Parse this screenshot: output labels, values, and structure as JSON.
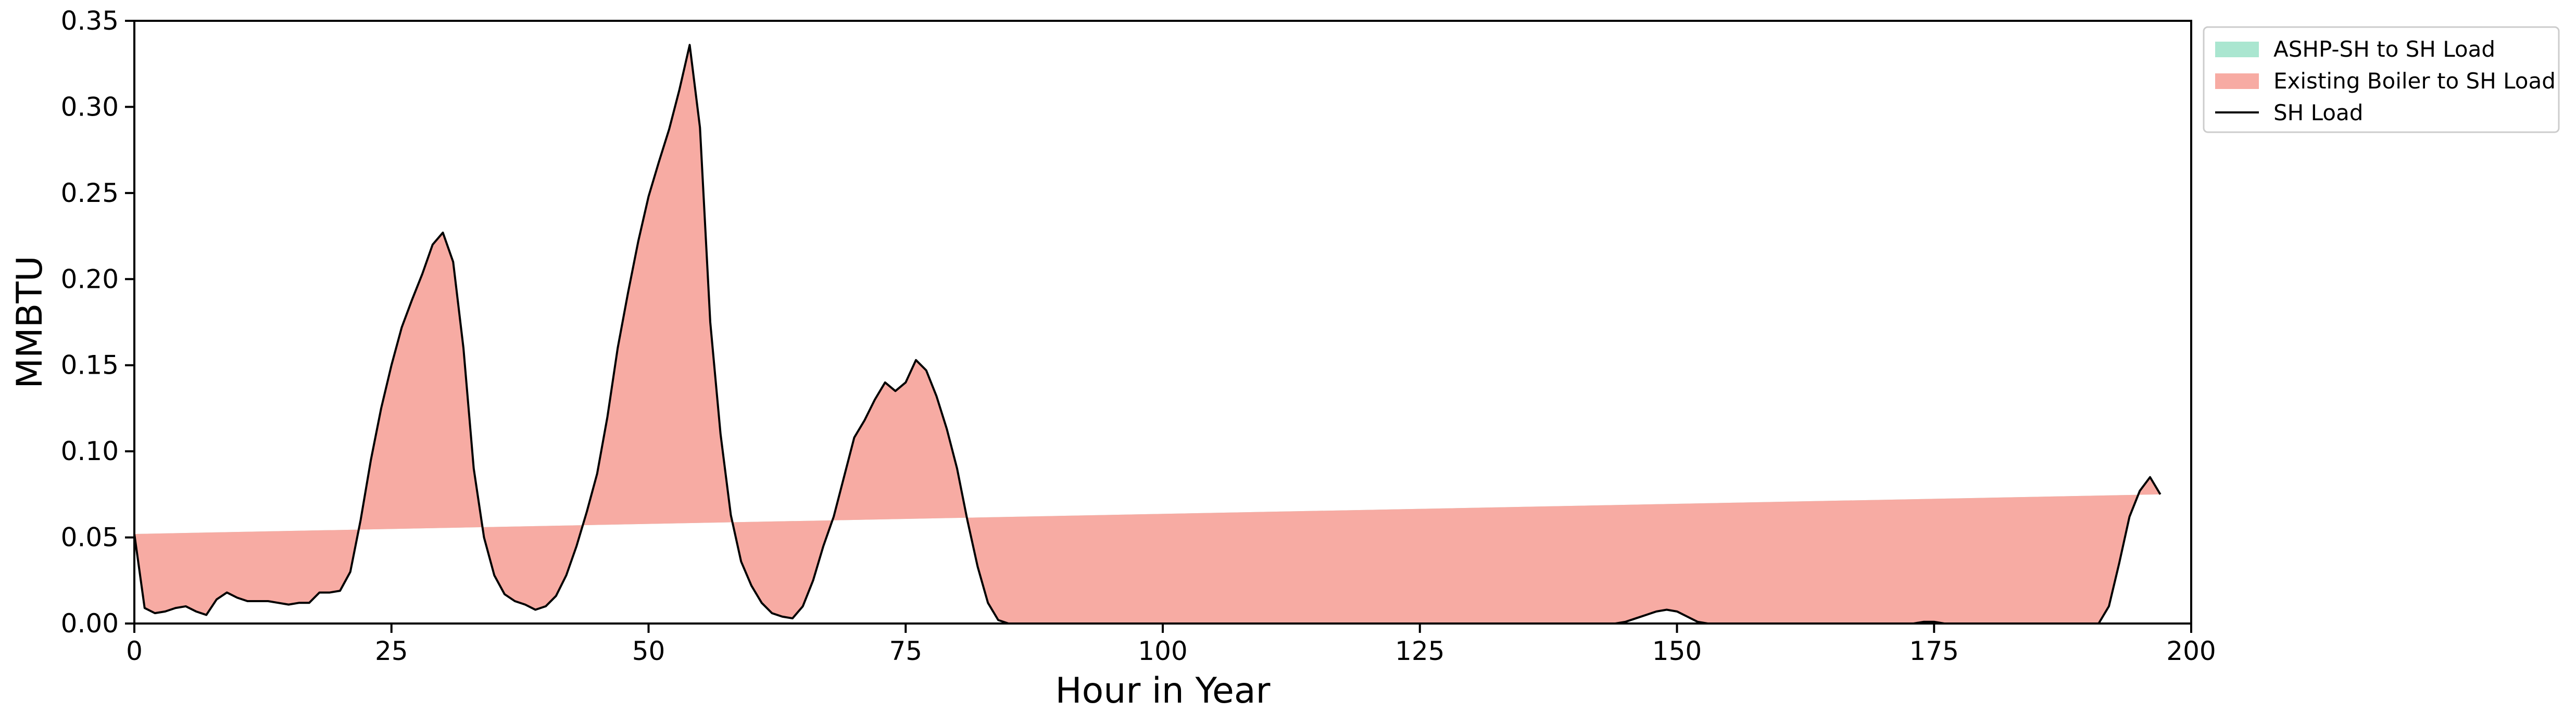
{
  "chart_data": {
    "type": "area",
    "title": "",
    "xlabel": "Hour in Year",
    "ylabel": "MMBTU",
    "xlim": [
      0,
      200
    ],
    "ylim": [
      0,
      0.35
    ],
    "x_ticks": [
      0,
      25,
      50,
      75,
      100,
      125,
      150,
      175,
      200
    ],
    "y_ticks": [
      0.0,
      0.05,
      0.1,
      0.15,
      0.2,
      0.25,
      0.3,
      0.35
    ],
    "x_tick_labels": [
      "0",
      "25",
      "50",
      "75",
      "100",
      "125",
      "150",
      "175",
      "200"
    ],
    "y_tick_labels": [
      "0.00",
      "0.05",
      "0.10",
      "0.15",
      "0.20",
      "0.25",
      "0.30",
      "0.35"
    ],
    "grid": false,
    "legend_position": "outside top-right",
    "colors": {
      "ashp": "#aae6d0",
      "boiler": "#f7aba3",
      "load": "#000000",
      "frame": "#000000",
      "legend_border": "#cccccc"
    },
    "series": [
      {
        "name": "ASHP-SH to SH Load",
        "kind": "area",
        "color_key": "ashp"
      },
      {
        "name": "Existing Boiler to SH Load",
        "kind": "area",
        "color_key": "boiler"
      },
      {
        "name": "SH Load",
        "kind": "line",
        "color_key": "load"
      }
    ],
    "x": [
      0,
      1,
      2,
      3,
      4,
      5,
      6,
      7,
      8,
      9,
      10,
      11,
      12,
      13,
      14,
      15,
      16,
      17,
      18,
      19,
      20,
      21,
      22,
      23,
      24,
      25,
      26,
      27,
      28,
      29,
      30,
      31,
      32,
      33,
      34,
      35,
      36,
      37,
      38,
      39,
      40,
      41,
      42,
      43,
      44,
      45,
      46,
      47,
      48,
      49,
      50,
      51,
      52,
      53,
      54,
      55,
      56,
      57,
      58,
      59,
      60,
      61,
      62,
      63,
      64,
      65,
      66,
      67,
      68,
      69,
      70,
      71,
      72,
      73,
      74,
      75,
      76,
      77,
      78,
      79,
      80,
      81,
      82,
      83,
      84,
      85,
      86,
      87,
      88,
      89,
      90,
      91,
      92,
      93,
      94,
      95,
      96,
      97,
      98,
      99,
      100,
      101,
      102,
      103,
      104,
      105,
      106,
      107,
      108,
      109,
      110,
      111,
      112,
      113,
      114,
      115,
      116,
      117,
      118,
      119,
      120,
      121,
      122,
      123,
      124,
      125,
      126,
      127,
      128,
      129,
      130,
      131,
      132,
      133,
      134,
      135,
      136,
      137,
      138,
      139,
      140,
      141,
      142,
      143,
      144,
      145,
      146,
      147,
      148,
      149,
      150,
      151,
      152,
      153,
      154,
      155,
      156,
      157,
      158,
      159,
      160,
      161,
      162,
      163,
      164,
      165,
      166,
      167,
      168,
      169,
      170,
      171,
      172,
      173,
      174,
      175,
      176,
      177,
      178,
      179,
      180,
      181,
      182,
      183,
      184,
      185,
      186,
      187,
      188,
      189,
      190,
      191,
      192,
      193,
      194,
      195,
      196,
      197,
      198,
      199
    ],
    "ashp_to_sh": [
      0.052,
      0.009,
      0.006,
      0.007,
      0.009,
      0.01,
      0.007,
      0.005,
      0.014,
      0.018,
      0.015,
      0.013,
      0.013,
      0.013,
      0.012,
      0.011,
      0.012,
      0.012,
      0.018,
      0.018,
      0.019,
      0.03,
      0.06,
      0.095,
      0.125,
      0.15,
      0.172,
      0.188,
      0.203,
      0.22,
      0.227,
      0.21,
      0.16,
      0.09,
      0.05,
      0.028,
      0.017,
      0.013,
      0.011,
      0.008,
      0.01,
      0.016,
      0.028,
      0.045,
      0.065,
      0.087,
      0.12,
      0.16,
      0.192,
      0.222,
      0.248,
      0.268,
      0.287,
      0.31,
      0.336,
      0.288,
      0.175,
      0.11,
      0.063,
      0.036,
      0.022,
      0.012,
      0.006,
      0.004,
      0.003,
      0.01,
      0.025,
      0.045,
      0.062,
      0.085,
      0.108,
      0.118,
      0.13,
      0.14,
      0.135,
      0.14,
      0.153,
      0.147,
      0.132,
      0.113,
      0.09,
      0.06,
      0.033,
      0.012,
      0.002,
      0.0,
      0.0,
      0.0,
      0.0,
      0.0,
      0.0,
      0.0,
      0.0,
      0.0,
      0.0,
      0.0,
      0.0,
      0.0,
      0.0,
      0.0,
      0.0,
      0.0,
      0.0,
      0.0,
      0.0,
      0.0,
      0.0,
      0.0,
      0.0,
      0.0,
      0.0,
      0.0,
      0.0,
      0.0,
      0.0,
      0.0,
      0.0,
      0.0,
      0.0,
      0.0,
      0.0,
      0.0,
      0.0,
      0.0,
      0.0,
      0.0,
      0.0,
      0.0,
      0.0,
      0.0,
      0.0,
      0.0,
      0.0,
      0.0,
      0.0,
      0.0,
      0.0,
      0.0,
      0.0,
      0.0,
      0.0,
      0.0,
      0.0,
      0.0,
      0.0,
      0.001,
      0.003,
      0.005,
      0.007,
      0.008,
      0.007,
      0.004,
      0.001,
      0.0,
      0.0,
      0.0,
      0.0,
      0.0,
      0.0,
      0.0,
      0.0,
      0.0,
      0.0,
      0.0,
      0.0,
      0.0,
      0.0,
      0.0,
      0.0,
      0.0,
      0.0,
      0.0,
      0.0,
      0.0,
      0.001,
      0.001,
      0.0,
      0.0,
      0.0,
      0.0,
      0.0,
      0.0,
      0.0,
      0.0,
      0.0,
      0.0,
      0.0,
      0.0,
      0.0,
      0.0,
      0.0,
      0.0,
      0.01,
      0.035,
      0.062,
      0.077,
      0.085,
      0.075
    ],
    "boiler_to_sh": [
      0,
      0,
      0,
      0,
      0,
      0,
      0,
      0,
      0,
      0,
      0,
      0,
      0,
      0,
      0,
      0,
      0,
      0,
      0,
      0,
      0,
      0,
      0,
      0,
      0,
      0,
      0,
      0,
      0,
      0,
      0,
      0,
      0,
      0,
      0,
      0,
      0,
      0,
      0,
      0,
      0,
      0,
      0,
      0,
      0,
      0,
      0,
      0,
      0,
      0,
      0,
      0,
      0,
      0,
      0,
      0,
      0,
      0,
      0,
      0,
      0,
      0,
      0,
      0,
      0,
      0,
      0,
      0,
      0,
      0,
      0,
      0,
      0,
      0,
      0,
      0,
      0,
      0,
      0,
      0,
      0,
      0,
      0,
      0,
      0,
      0,
      0,
      0,
      0,
      0,
      0,
      0,
      0,
      0,
      0,
      0,
      0,
      0,
      0,
      0,
      0,
      0,
      0,
      0,
      0,
      0,
      0,
      0,
      0,
      0,
      0,
      0,
      0,
      0,
      0,
      0,
      0,
      0,
      0,
      0,
      0,
      0,
      0,
      0,
      0,
      0,
      0,
      0,
      0,
      0,
      0,
      0,
      0,
      0,
      0,
      0,
      0,
      0,
      0,
      0,
      0,
      0,
      0,
      0,
      0,
      0,
      0,
      0,
      0,
      0,
      0,
      0,
      0,
      0,
      0,
      0,
      0,
      0,
      0,
      0,
      0,
      0,
      0,
      0,
      0,
      0,
      0,
      0,
      0,
      0,
      0,
      0,
      0,
      0,
      0,
      0,
      0,
      0,
      0,
      0,
      0,
      0,
      0,
      0,
      0,
      0,
      0,
      0,
      0,
      0,
      0,
      0,
      0,
      0,
      0,
      0,
      0,
      0,
      0,
      0
    ],
    "sh_load": [
      0.052,
      0.009,
      0.006,
      0.007,
      0.009,
      0.01,
      0.007,
      0.005,
      0.014,
      0.018,
      0.015,
      0.013,
      0.013,
      0.013,
      0.012,
      0.011,
      0.012,
      0.012,
      0.018,
      0.018,
      0.019,
      0.03,
      0.06,
      0.095,
      0.125,
      0.15,
      0.172,
      0.188,
      0.203,
      0.22,
      0.227,
      0.21,
      0.16,
      0.09,
      0.05,
      0.028,
      0.017,
      0.013,
      0.011,
      0.008,
      0.01,
      0.016,
      0.028,
      0.045,
      0.065,
      0.087,
      0.12,
      0.16,
      0.192,
      0.222,
      0.248,
      0.268,
      0.287,
      0.31,
      0.336,
      0.288,
      0.175,
      0.11,
      0.063,
      0.036,
      0.022,
      0.012,
      0.006,
      0.004,
      0.003,
      0.01,
      0.025,
      0.045,
      0.062,
      0.085,
      0.108,
      0.118,
      0.13,
      0.14,
      0.135,
      0.14,
      0.153,
      0.147,
      0.132,
      0.113,
      0.09,
      0.06,
      0.033,
      0.012,
      0.002,
      0.0,
      0.0,
      0.0,
      0.0,
      0.0,
      0.0,
      0.0,
      0.0,
      0.0,
      0.0,
      0.0,
      0.0,
      0.0,
      0.0,
      0.0,
      0.0,
      0.0,
      0.0,
      0.0,
      0.0,
      0.0,
      0.0,
      0.0,
      0.0,
      0.0,
      0.0,
      0.0,
      0.0,
      0.0,
      0.0,
      0.0,
      0.0,
      0.0,
      0.0,
      0.0,
      0.0,
      0.0,
      0.0,
      0.0,
      0.0,
      0.0,
      0.0,
      0.0,
      0.0,
      0.0,
      0.0,
      0.0,
      0.0,
      0.0,
      0.0,
      0.0,
      0.0,
      0.0,
      0.0,
      0.0,
      0.0,
      0.0,
      0.0,
      0.0,
      0.0,
      0.001,
      0.003,
      0.005,
      0.007,
      0.008,
      0.007,
      0.004,
      0.001,
      0.0,
      0.0,
      0.0,
      0.0,
      0.0,
      0.0,
      0.0,
      0.0,
      0.0,
      0.0,
      0.0,
      0.0,
      0.0,
      0.0,
      0.0,
      0.0,
      0.0,
      0.0,
      0.0,
      0.0,
      0.0,
      0.001,
      0.001,
      0.0,
      0.0,
      0.0,
      0.0,
      0.0,
      0.0,
      0.0,
      0.0,
      0.0,
      0.0,
      0.0,
      0.0,
      0.0,
      0.0,
      0.0,
      0.0,
      0.01,
      0.035,
      0.062,
      0.077,
      0.085,
      0.075
    ]
  }
}
